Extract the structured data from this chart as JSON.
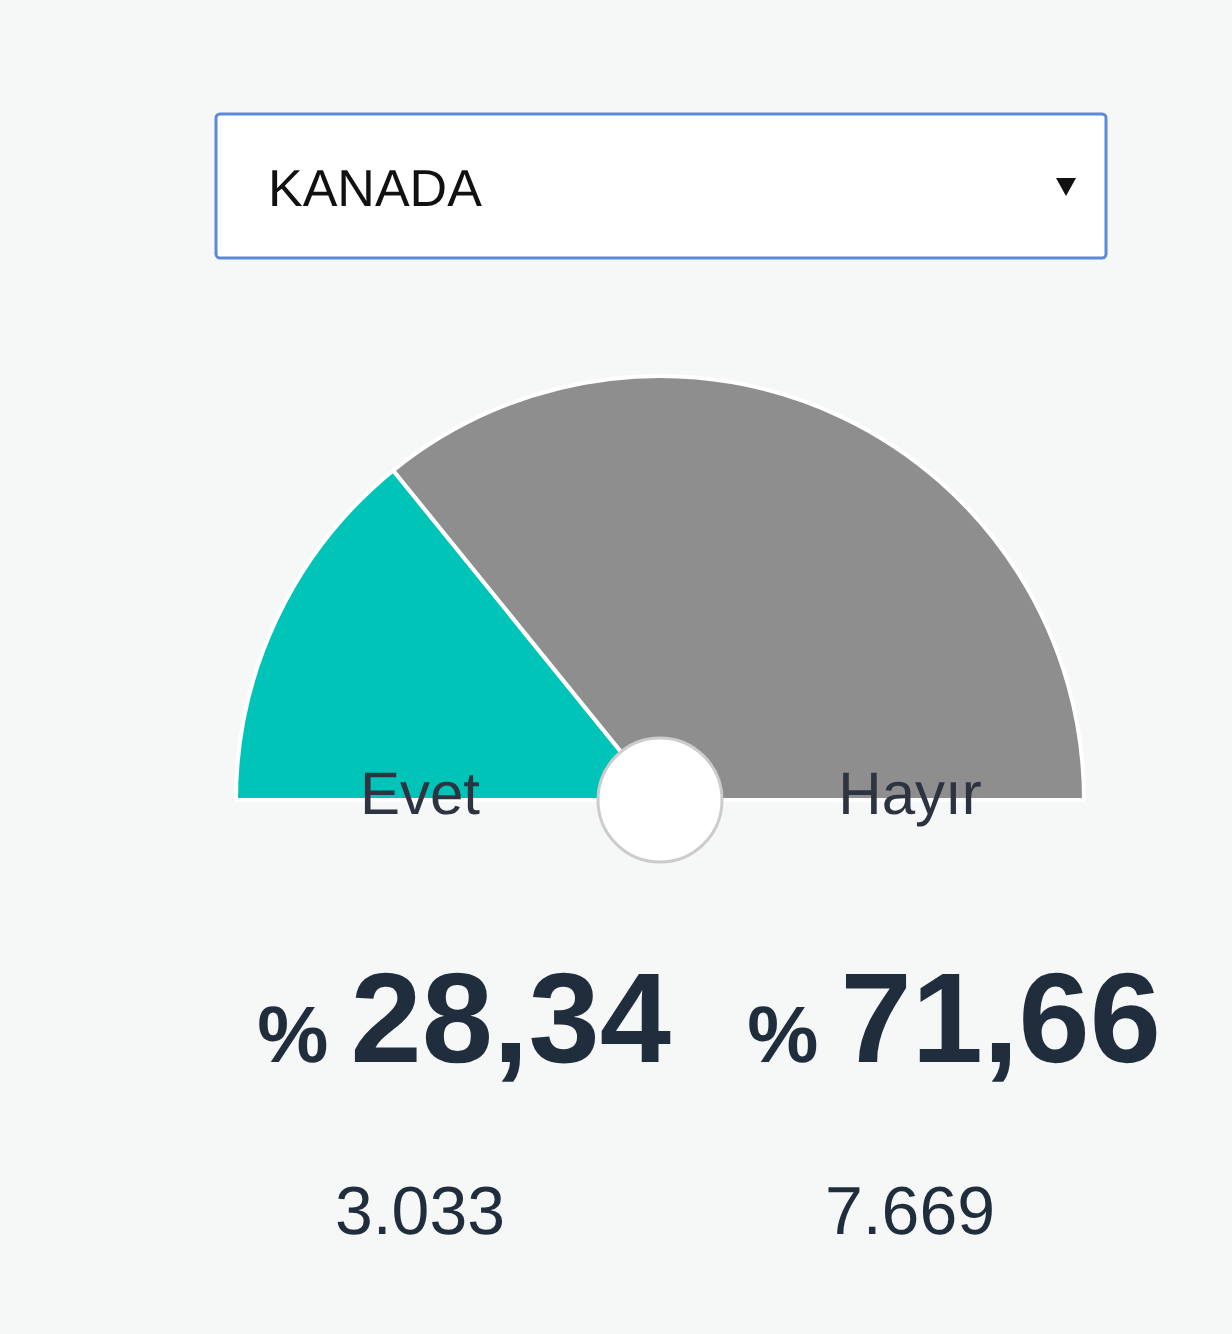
{
  "chart_data": {
    "type": "pie",
    "title": "KANADA",
    "categories": [
      "Evet",
      "Hayır"
    ],
    "values": [
      28.34,
      71.66
    ],
    "colors": [
      "#00c4b8",
      "#8e8e8e"
    ],
    "value_labels": [
      "% 28,34",
      "% 71,66"
    ],
    "annotations": [
      "3.033",
      "7.669"
    ]
  }
}
